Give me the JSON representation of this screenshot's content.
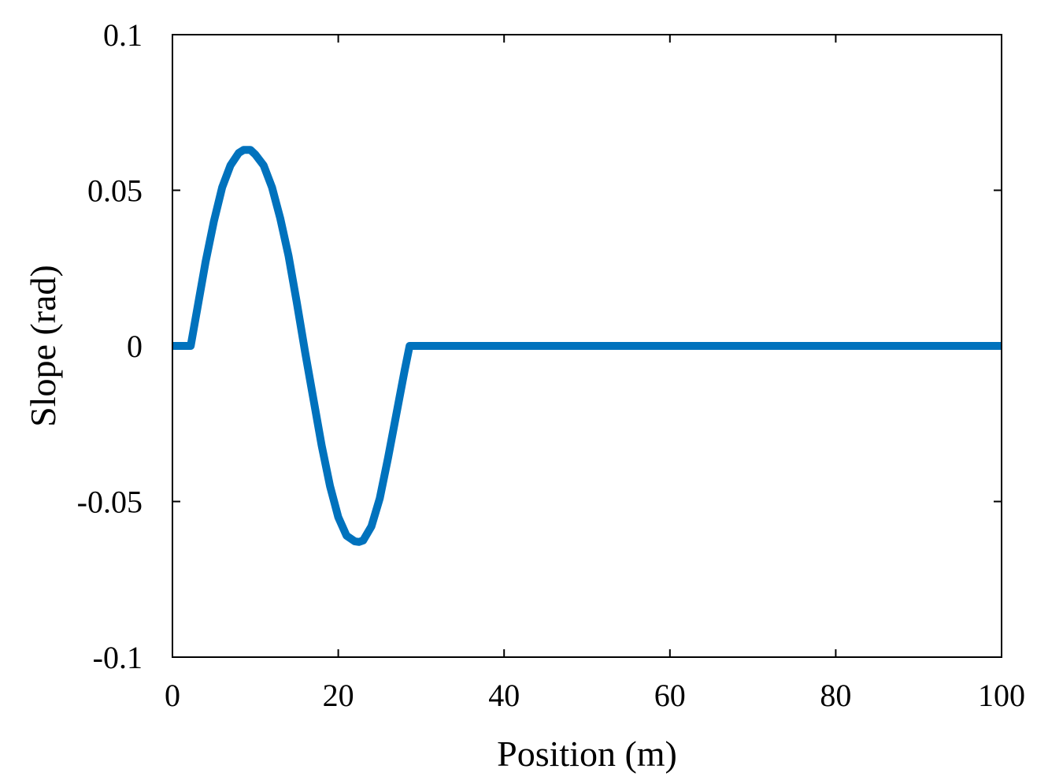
{
  "chart_data": {
    "type": "line",
    "title": "",
    "xlabel": "Position (m)",
    "ylabel": "Slope (rad)",
    "xlim": [
      0,
      100
    ],
    "ylim": [
      -0.1,
      0.1
    ],
    "xticks": [
      0,
      20,
      40,
      60,
      80,
      100
    ],
    "xtick_labels": [
      "0",
      "20",
      "40",
      "60",
      "80",
      "100"
    ],
    "yticks": [
      -0.1,
      -0.05,
      0,
      0.05,
      0.1
    ],
    "ytick_labels": [
      "-0.1",
      "-0.05",
      "0",
      "0.05",
      "0.1"
    ],
    "grid": false,
    "legend": "none",
    "line_color": "#0072BD",
    "series": [
      {
        "x": [
          0,
          2.2,
          3,
          4,
          5,
          6,
          7,
          8,
          8.6,
          9.4,
          10,
          11,
          12,
          13,
          14,
          15,
          16,
          17,
          18,
          19,
          20,
          21,
          22,
          22.5,
          23,
          24,
          25,
          26,
          27,
          28,
          28.6,
          29,
          40,
          60,
          80,
          100
        ],
        "y": [
          0,
          0,
          0.012,
          0.027,
          0.04,
          0.051,
          0.058,
          0.062,
          0.063,
          0.063,
          0.0615,
          0.058,
          0.051,
          0.041,
          0.029,
          0.014,
          -0.002,
          -0.017,
          -0.032,
          -0.045,
          -0.055,
          -0.061,
          -0.0628,
          -0.063,
          -0.0625,
          -0.058,
          -0.049,
          -0.036,
          -0.022,
          -0.008,
          0,
          0,
          0,
          0,
          0,
          0
        ]
      }
    ]
  }
}
